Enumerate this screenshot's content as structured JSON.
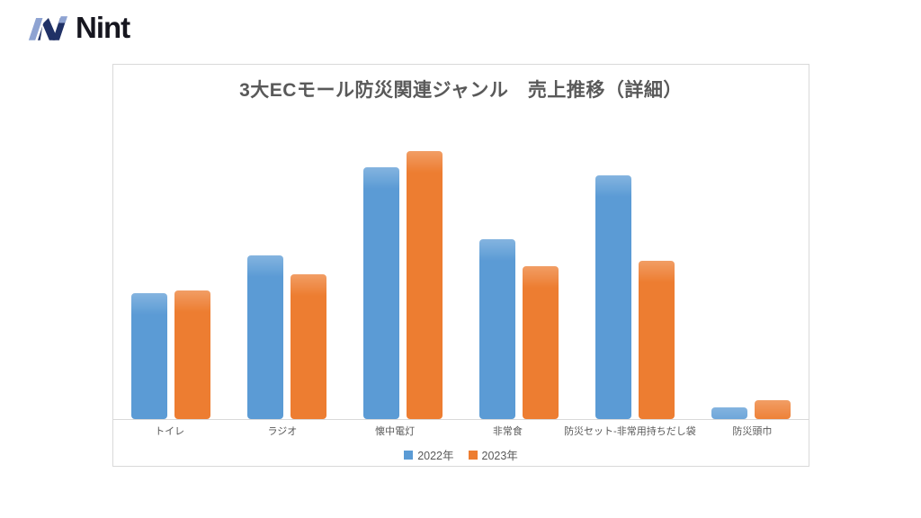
{
  "logo": {
    "text": "Nint",
    "colors": {
      "light_blue": "#8EA3D2",
      "navy": "#203166",
      "text": "#16161F"
    }
  },
  "chart_data": {
    "type": "bar",
    "title": "3大ECモール防災関連ジャンル　売上推移（詳細）",
    "categories": [
      "トイレ",
      "ラジオ",
      "懐中電灯",
      "非常食",
      "防災セット-非常用持ちだし袋",
      "防災頭巾"
    ],
    "series": [
      {
        "name": "2022年",
        "color": "#5B9BD5",
        "values": [
          47,
          61,
          94,
          67,
          91,
          4.5
        ]
      },
      {
        "name": "2023年",
        "color": "#ED7D31",
        "values": [
          48,
          54,
          100,
          57,
          59,
          7
        ]
      }
    ],
    "xlabel": "",
    "ylabel": "",
    "ylim": [
      0,
      100
    ],
    "y_axis_labels_visible": false,
    "grid": false,
    "legend_position": "bottom",
    "values_note": "relative height index, tallest bar = 100 (no numeric axis shown in image)",
    "style": {
      "text_color": "#595959",
      "axis_line_color": "#D9D9D9",
      "card_border_color": "#D9D9D9"
    }
  }
}
